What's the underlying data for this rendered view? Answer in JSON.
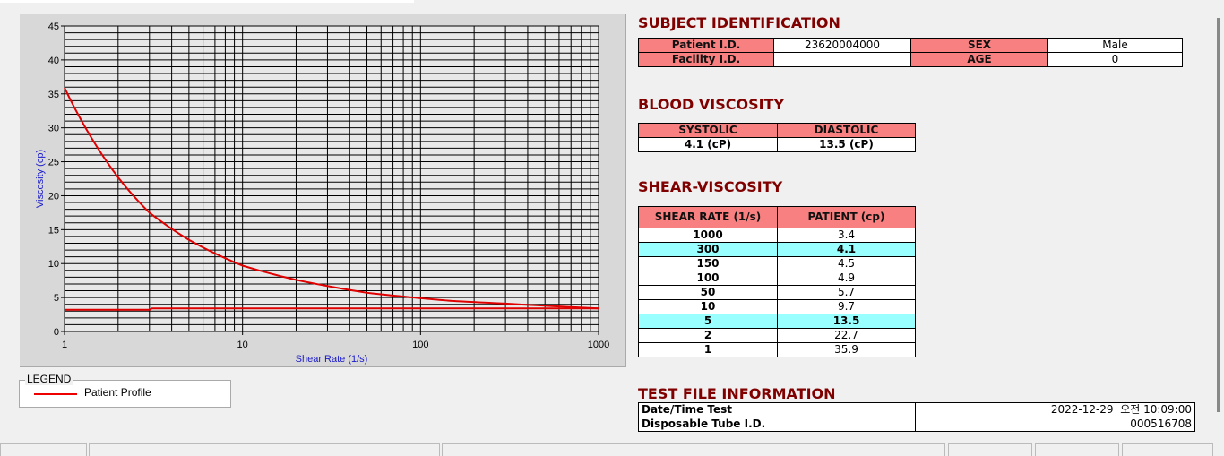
{
  "chart_data": {
    "type": "line",
    "xlabel": "Shear Rate (1/s)",
    "ylabel": "Viscosity (cp)",
    "xscale": "log",
    "xlim": [
      1,
      1000
    ],
    "ylim": [
      0,
      45
    ],
    "xticks": [
      "1",
      "10",
      "100",
      "1000"
    ],
    "yticks": [
      "0",
      "5",
      "10",
      "15",
      "20",
      "25",
      "30",
      "35",
      "40",
      "45"
    ],
    "grid": true,
    "series": [
      {
        "name": "Patient Profile",
        "color": "#e00000",
        "x": [
          1,
          2,
          3,
          5,
          10,
          20,
          50,
          100,
          150,
          300,
          1000
        ],
        "y": [
          35.9,
          22.7,
          17.5,
          13.5,
          9.7,
          7.6,
          5.7,
          4.9,
          4.5,
          4.1,
          3.4
        ]
      },
      {
        "color": "#e00000",
        "x": [
          1,
          3,
          3.1,
          1000
        ],
        "y": [
          3.2,
          3.2,
          3.4,
          3.4
        ]
      }
    ],
    "legend": {
      "title": "LEGEND",
      "placement": "bottom-left"
    }
  },
  "subject": {
    "title": "SUBJECT IDENTIFICATION",
    "patient_id_label": "Patient I.D.",
    "patient_id": "23620004000",
    "sex_label": "SEX",
    "sex": "Male",
    "facility_label": "Facility I.D.",
    "facility": "",
    "age_label": "AGE",
    "age": "0"
  },
  "blood": {
    "title": "BLOOD VISCOSITY",
    "systolic_label": "SYSTOLIC",
    "diastolic_label": "DIASTOLIC",
    "systolic": "4.1 (cP)",
    "diastolic": "13.5 (cP)"
  },
  "shear": {
    "title": "SHEAR-VISCOSITY",
    "col1": "SHEAR RATE (1/s)",
    "col2": "PATIENT (cp)",
    "rows": [
      {
        "rate": "1000",
        "v": "3.4"
      },
      {
        "rate": "300",
        "v": "4.1",
        "hl": true
      },
      {
        "rate": "150",
        "v": "4.5"
      },
      {
        "rate": "100",
        "v": "4.9"
      },
      {
        "rate": "50",
        "v": "5.7"
      },
      {
        "rate": "10",
        "v": "9.7"
      },
      {
        "rate": "5",
        "v": "13.5",
        "hl": true
      },
      {
        "rate": "2",
        "v": "22.7"
      },
      {
        "rate": "1",
        "v": "35.9"
      }
    ]
  },
  "testfile": {
    "title": "TEST FILE INFORMATION",
    "date_label": "Date/Time Test",
    "date": "2022-12-29  오전 10:09:00",
    "tube_label": "Disposable Tube I.D.",
    "tube": "000516708"
  },
  "colors": {
    "header": "#f88080",
    "highlight": "#99ffff",
    "title": "#800000",
    "curve": "#e00000"
  }
}
